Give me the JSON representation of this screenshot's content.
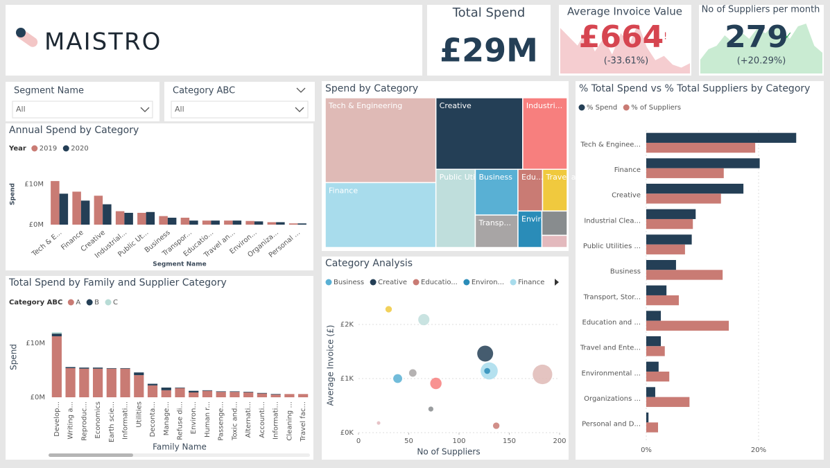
{
  "logo": {
    "text": "MAISTRO"
  },
  "kpis": [
    {
      "title": "Total Spend",
      "value": "£29M"
    },
    {
      "title": "Average Invoice Value",
      "value": "£664",
      "status": "!",
      "change": "(-33.61%)",
      "color": "#f5cdd0",
      "trend": [
        62,
        50,
        38,
        58,
        30,
        48,
        26,
        55,
        40,
        68,
        36,
        18,
        24,
        12,
        8,
        14
      ]
    },
    {
      "title": "No of Suppliers per month",
      "value": "279",
      "status": "✓",
      "change": "(+20.29%)",
      "color": "#c9ebd2",
      "trend": [
        20,
        35,
        40,
        55,
        45,
        60,
        50,
        65,
        58,
        70,
        62,
        50,
        68,
        72,
        40,
        30
      ]
    }
  ],
  "slicers": [
    {
      "label": "Segment Name",
      "selection": "All"
    },
    {
      "label": "Category ABC",
      "selection": "All"
    }
  ],
  "chart_data": [
    {
      "type": "bar",
      "title": "Annual Spend by Category",
      "legend_title": "Year",
      "categories": [
        "Tech & E...",
        "Finance",
        "Creative",
        "Industrial...",
        "Public Ut...",
        "Business",
        "Transpor...",
        "Educatio...",
        "Travel an...",
        "Environ...",
        "Organiza...",
        "Personal ..."
      ],
      "series": [
        {
          "name": "2019",
          "color": "#c97b74",
          "values": [
            10.7,
            8.1,
            7.1,
            3.3,
            2.9,
            2.1,
            1.7,
            1.0,
            1.0,
            0.9,
            0.6,
            0.3
          ]
        },
        {
          "name": "2020",
          "color": "#243f56",
          "values": [
            7.6,
            5.9,
            5.0,
            2.9,
            3.1,
            1.7,
            1.0,
            1.0,
            1.0,
            0.8,
            0.6,
            0.3
          ]
        }
      ],
      "ylim": [
        0,
        16
      ],
      "yticks": [
        {
          "value": 0,
          "label": "£0M"
        },
        {
          "value": 10,
          "label": "£10M"
        }
      ],
      "xlabel": "Segment Name",
      "ylabel": "Spend"
    },
    {
      "type": "stacked_bar",
      "title": "Total Spend by Family and Supplier Category",
      "legend_title": "Category ABC",
      "categories": [
        "Develop...",
        "Writing a...",
        "Reproduc...",
        "Economics",
        "Earth scie...",
        "Informati...",
        "Utilities",
        "Deconta...",
        "Manage...",
        "Refuse di...",
        "Environ...",
        "Human r...",
        "Passenge...",
        "Toxic and...",
        "Alternati...",
        "Accounti...",
        "Informati...",
        "Cleaning ...",
        "Travel fac..."
      ],
      "series": [
        {
          "name": "A",
          "color": "#c97b74",
          "values": [
            11.3,
            5.4,
            5.3,
            5.3,
            5.3,
            5.3,
            4.1,
            2.2,
            1.3,
            1.7,
            0.9,
            1.2,
            1.0,
            1.0,
            0.9,
            0.7,
            0.5,
            0.6,
            0.6
          ]
        },
        {
          "name": "B",
          "color": "#243f56",
          "values": [
            0.5,
            0.2,
            0.2,
            0.2,
            0.1,
            0.1,
            0.5,
            0.3,
            0.5,
            0.1,
            0.3,
            0.1,
            0.1,
            0.1,
            0.1,
            0.1,
            0.1,
            0,
            0
          ]
        },
        {
          "name": "C",
          "color": "#b8dcd6",
          "values": [
            0.25,
            0,
            0,
            0,
            0,
            0,
            0,
            0,
            0,
            0,
            0,
            0,
            0,
            0,
            0,
            0,
            0,
            0,
            0
          ]
        }
      ],
      "ylim": [
        0,
        14
      ],
      "yticks": [
        {
          "value": 0,
          "label": "£0M"
        },
        {
          "value": 10,
          "label": "£10M"
        }
      ],
      "xlabel": "Family Name",
      "ylabel": "Spend"
    },
    {
      "type": "treemap",
      "title": "Spend by Category",
      "categories": [
        "Tech & Engineering",
        "Finance",
        "Creative",
        "Industri...",
        "Public Utilities ...",
        "Business",
        "Transp...",
        "Edu...",
        "Travel an...",
        "Environ...",
        null,
        null
      ],
      "values": [
        18.3,
        14.0,
        12.1,
        6.2,
        6.0,
        3.8,
        2.7,
        2.0,
        2.0,
        1.7,
        1.2,
        0.6
      ],
      "colors": [
        "#dfbab6",
        "#a8dcec",
        "#243f56",
        "#f77f7e",
        "#bfdedc",
        "#59b0d4",
        "#a8a5a5",
        "#c97b74",
        "#f0c93e",
        "#2a8cb8",
        "#888c8e",
        "#e3b9bd"
      ]
    },
    {
      "type": "scatter",
      "title": "Category Analysis",
      "legend": [
        {
          "name": "Business",
          "color": "#59b0d4"
        },
        {
          "name": "Creative",
          "color": "#243f56"
        },
        {
          "name": "Educatio...",
          "color": "#c97b74"
        },
        {
          "name": "Environ...",
          "color": "#2a8cb8"
        },
        {
          "name": "Finance",
          "color": "#a8dcec"
        }
      ],
      "x": [
        30,
        65,
        126,
        130,
        128,
        183,
        77,
        54,
        39,
        72,
        137,
        20
      ],
      "values": [
        2282,
        2090,
        1462,
        1141,
        1141,
        1077,
        910,
        1103,
        1000,
        436,
        128,
        179
      ],
      "sizes": [
        2.0,
        6.0,
        12.1,
        14.0,
        1.7,
        18.3,
        6.2,
        2.7,
        3.8,
        1.2,
        2.0,
        0.6
      ],
      "colors": [
        "#f0c93e",
        "#bfdedc",
        "#243f56",
        "#a8dcec",
        "#2a8cb8",
        "#dfbab6",
        "#f77f7e",
        "#a8a5a5",
        "#59b0d4",
        "#888c8e",
        "#c97b74",
        "#e3b9bd"
      ],
      "xlim": [
        0,
        200
      ],
      "xticks": [
        0,
        50,
        100,
        150,
        200
      ],
      "ylim": [
        0,
        2500
      ],
      "yticks": [
        {
          "value": 0,
          "label": "£0K"
        },
        {
          "value": 1000,
          "label": "£1K"
        },
        {
          "value": 2000,
          "label": "£2K"
        }
      ],
      "xlabel": "No of Suppliers",
      "ylabel": "Average Invoice (£)",
      "grid": true
    },
    {
      "type": "hbar",
      "title": "% Total Spend vs % Total Suppliers by Category",
      "categories": [
        "Tech & Enginee...",
        "Finance",
        "Creative",
        "Industrial Clea...",
        "Public Utilities ...",
        "Business",
        "Transport, Stor...",
        "Education and ...",
        "Travel and Ente...",
        "Environmental ...",
        "Organizations ...",
        "Personal and D..."
      ],
      "series": [
        {
          "name": "% Spend",
          "color": "#243f56",
          "values": [
            26.7,
            20.2,
            17.3,
            8.8,
            8.1,
            5.3,
            3.6,
            2.6,
            2.6,
            2.2,
            1.6,
            0.4
          ]
        },
        {
          "name": "% of Suppliers",
          "color": "#c97b74",
          "values": [
            19.4,
            13.8,
            13.3,
            8.3,
            6.9,
            13.6,
            5.8,
            14.7,
            3.3,
            4.1,
            7.7,
            2.1
          ]
        }
      ],
      "xlim": [
        0,
        30
      ],
      "xticks": [
        {
          "value": 0,
          "label": "0%"
        },
        {
          "value": 20,
          "label": "20%"
        }
      ],
      "grid": true
    }
  ]
}
